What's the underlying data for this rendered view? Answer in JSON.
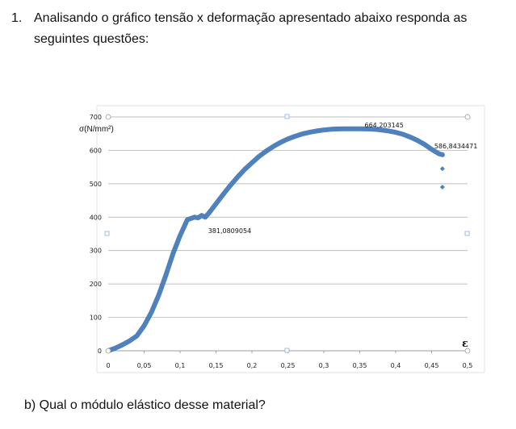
{
  "question": {
    "number": "1.",
    "text_line1": "Analisando o gráfico tensão x deformação apresentado abaixo responda as",
    "text_line2": "seguintes questões:"
  },
  "sub_question": "b) Qual o módulo elástico desse material?",
  "chart_data": {
    "type": "scatter",
    "ylabel": "σ(N/mm²)",
    "xlabel": "ε",
    "xlim": [
      0,
      0.5
    ],
    "ylim": [
      0,
      700
    ],
    "x_ticks": [
      "0",
      "0,05",
      "0,1",
      "0,15",
      "0,2",
      "0,25",
      "0,3",
      "0,35",
      "0,4",
      "0,45",
      "0,5"
    ],
    "y_ticks": [
      "0",
      "100",
      "200",
      "300",
      "400",
      "500",
      "600",
      "700"
    ],
    "grid": true,
    "series_color": "#4f81bd",
    "annotations": [
      {
        "text": "381,0809054",
        "x": 0.13,
        "y": 381.08
      },
      {
        "text": "664,203145",
        "x": 0.35,
        "y": 664.2
      },
      {
        "text": "586,8434471",
        "x": 0.465,
        "y": 586.84
      }
    ],
    "series": [
      {
        "x": [
          0,
          0.01,
          0.02,
          0.03,
          0.04,
          0.05,
          0.06,
          0.07,
          0.08,
          0.09,
          0.1,
          0.11,
          0.12,
          0.125,
          0.13,
          0.135,
          0.14,
          0.15,
          0.16,
          0.17,
          0.18,
          0.19,
          0.2,
          0.21,
          0.22,
          0.23,
          0.24,
          0.25,
          0.26,
          0.27,
          0.28,
          0.29,
          0.3,
          0.31,
          0.32,
          0.33,
          0.34,
          0.35,
          0.36,
          0.37,
          0.38,
          0.39,
          0.4,
          0.41,
          0.42,
          0.43,
          0.44,
          0.45,
          0.46,
          0.465
        ],
        "y": [
          0,
          8,
          18,
          30,
          45,
          75,
          115,
          165,
          225,
          290,
          345,
          392,
          400,
          398,
          405,
          400,
          412,
          440,
          468,
          495,
          520,
          543,
          563,
          582,
          598,
          612,
          624,
          634,
          642,
          649,
          654,
          658,
          661,
          663,
          664,
          664.2,
          664.2,
          664.2,
          664,
          663,
          661,
          658,
          654,
          648,
          640,
          630,
          618,
          603,
          590,
          586.84
        ]
      },
      {
        "x": [
          0.465,
          0.465
        ],
        "y": [
          545,
          490
        ]
      }
    ]
  }
}
